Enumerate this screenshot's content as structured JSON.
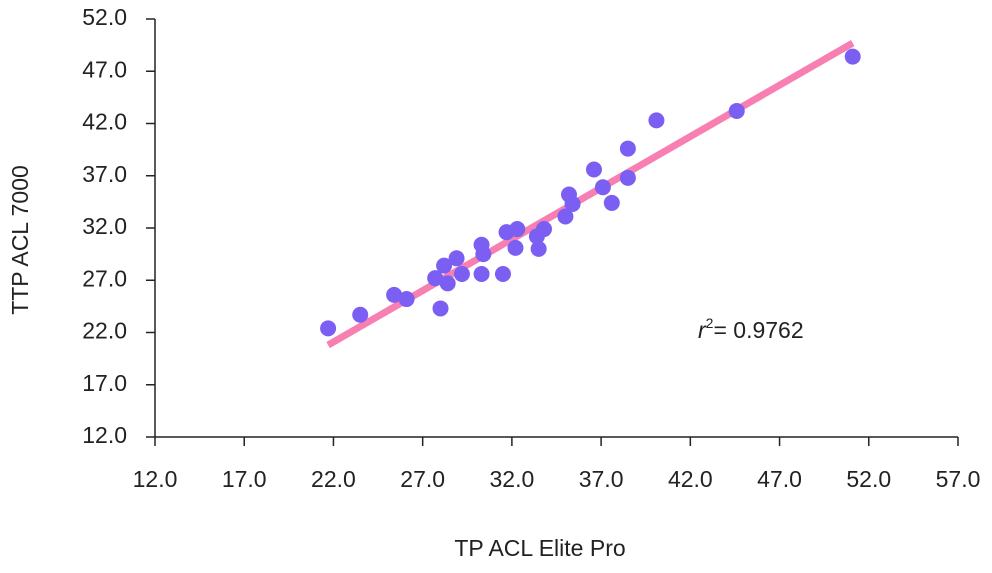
{
  "chart_data": {
    "type": "scatter",
    "x_label": "TP ACL Elite Pro",
    "y_label": "TTP ACL 7000",
    "annotation": {
      "variable": "r",
      "exponent": "2",
      "text": "= 0.9762"
    },
    "series": [
      {
        "color": "#7b5ff2",
        "x": [
          21.7,
          23.5,
          25.4,
          26.1,
          27.7,
          28.0,
          28.2,
          28.4,
          28.9,
          29.2,
          30.3,
          30.3,
          30.4,
          31.5,
          31.7,
          32.2,
          32.3,
          33.4,
          33.5,
          33.8,
          35.0,
          35.2,
          35.4,
          36.6,
          37.1,
          37.6,
          38.5,
          38.5,
          40.1,
          44.6,
          51.1
        ],
        "values": [
          22.4,
          23.7,
          25.6,
          25.2,
          27.2,
          24.3,
          28.4,
          26.7,
          29.1,
          27.6,
          30.4,
          27.6,
          29.5,
          27.6,
          31.6,
          30.1,
          31.9,
          31.2,
          30.0,
          31.9,
          33.1,
          35.2,
          34.3,
          37.6,
          35.9,
          34.4,
          39.6,
          36.8,
          42.3,
          43.2,
          48.4
        ]
      }
    ],
    "fit_line": {
      "color": "#f77fb2",
      "x": [
        21.7,
        51.1
      ],
      "values": [
        20.8,
        49.7
      ]
    },
    "xlim": [
      12,
      57
    ],
    "ylim": [
      12,
      52
    ],
    "xticks": [
      {
        "value": 12,
        "label": "12.0"
      },
      {
        "value": 17,
        "label": "17.0"
      },
      {
        "value": 22,
        "label": "22.0"
      },
      {
        "value": 27,
        "label": "27.0"
      },
      {
        "value": 32,
        "label": "32.0"
      },
      {
        "value": 37,
        "label": "37.0"
      },
      {
        "value": 42,
        "label": "42.0"
      },
      {
        "value": 47,
        "label": "47.0"
      },
      {
        "value": 52,
        "label": "52.0"
      },
      {
        "value": 57,
        "label": "57.0"
      }
    ],
    "yticks": [
      {
        "value": 12,
        "label": "12.0"
      },
      {
        "value": 17,
        "label": "17.0"
      },
      {
        "value": 22,
        "label": "22.0"
      },
      {
        "value": 27,
        "label": "27.0"
      },
      {
        "value": 32,
        "label": "32.0"
      },
      {
        "value": 37,
        "label": "37.0"
      },
      {
        "value": 42,
        "label": "42.0"
      },
      {
        "value": 47,
        "label": "47.0"
      },
      {
        "value": 52,
        "label": "52.0"
      }
    ]
  }
}
